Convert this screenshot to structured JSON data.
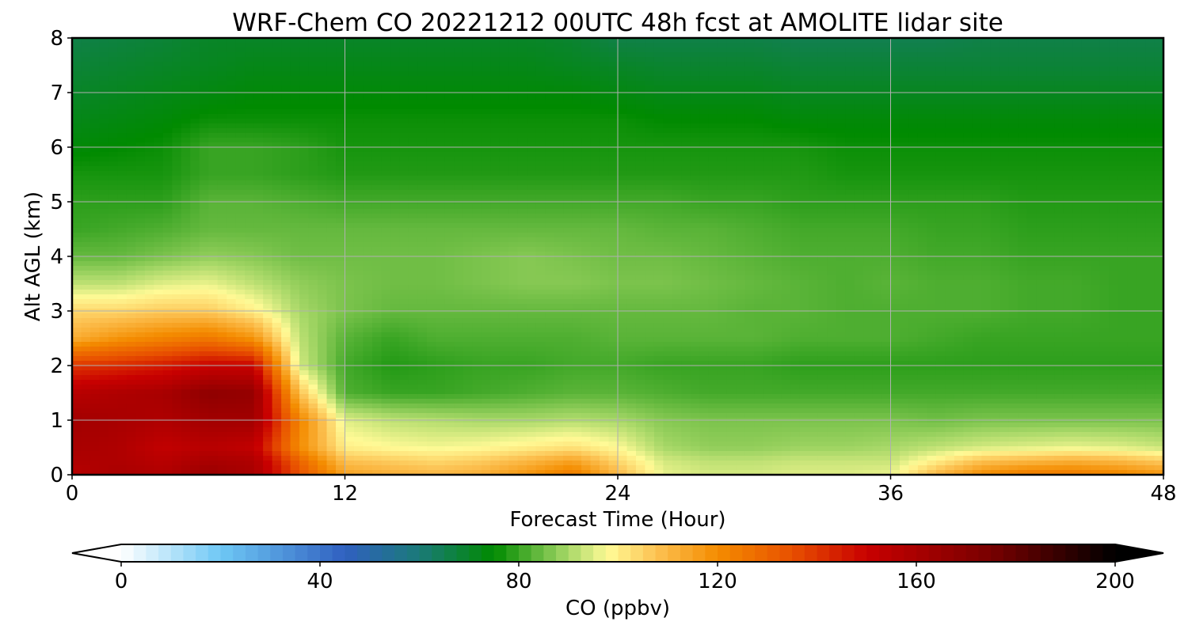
{
  "chart_data": {
    "type": "heatmap",
    "title": "WRF-Chem CO  20221212 00UTC 48h fcst at AMOLITE lidar site",
    "xlabel": "Forecast Time (Hour)",
    "ylabel": "Alt AGL (km)",
    "xlim": [
      0,
      48
    ],
    "ylim": [
      0,
      8
    ],
    "xticks": [
      0,
      12,
      24,
      36,
      48
    ],
    "xtick_labels": [
      "0",
      "12",
      "24",
      "36",
      "48"
    ],
    "yticks": [
      0,
      1,
      2,
      3,
      4,
      5,
      6,
      7,
      8
    ],
    "ytick_labels": [
      "0",
      "1",
      "2",
      "3",
      "4",
      "5",
      "6",
      "7",
      "8"
    ],
    "grid": true,
    "x": [
      0,
      2,
      4,
      6,
      8,
      10,
      12,
      14,
      16,
      18,
      20,
      22,
      24,
      26,
      28,
      30,
      32,
      34,
      36,
      38,
      40,
      42,
      44,
      46,
      48
    ],
    "y": [
      0,
      0.25,
      0.5,
      1,
      1.5,
      2,
      2.5,
      3,
      3.5,
      4,
      4.5,
      5,
      5.5,
      6,
      6.5,
      7,
      7.5,
      8
    ],
    "z_description": "CO mixing ratio in ppbv, rows ordered by altitude (y), columns by forecast hour (x)",
    "z": [
      [
        155,
        160,
        158,
        165,
        160,
        135,
        115,
        112,
        110,
        112,
        118,
        125,
        110,
        96,
        94,
        94,
        95,
        95,
        96,
        110,
        120,
        125,
        125,
        122,
        118
      ],
      [
        158,
        158,
        155,
        160,
        158,
        130,
        108,
        106,
        104,
        106,
        110,
        115,
        104,
        94,
        92,
        92,
        93,
        93,
        93,
        100,
        108,
        110,
        112,
        110,
        106
      ],
      [
        160,
        158,
        152,
        155,
        152,
        120,
        100,
        98,
        97,
        98,
        100,
        102,
        98,
        90,
        88,
        88,
        89,
        89,
        90,
        92,
        94,
        95,
        96,
        95,
        93
      ],
      [
        162,
        160,
        158,
        162,
        162,
        122,
        95,
        92,
        91,
        90,
        90,
        91,
        90,
        87,
        86,
        86,
        86,
        86,
        86,
        85,
        86,
        86,
        86,
        86,
        86
      ],
      [
        155,
        158,
        160,
        168,
        166,
        108,
        82,
        80,
        80,
        81,
        82,
        83,
        83,
        82,
        81,
        81,
        81,
        81,
        81,
        81,
        81,
        81,
        81,
        81,
        81
      ],
      [
        140,
        142,
        145,
        150,
        150,
        94,
        81,
        78,
        79,
        80,
        80,
        81,
        81,
        80,
        80,
        80,
        79,
        79,
        79,
        79,
        79,
        79,
        79,
        79,
        79
      ],
      [
        112,
        118,
        122,
        125,
        118,
        92,
        83,
        80,
        82,
        82,
        82,
        82,
        83,
        83,
        83,
        83,
        82,
        82,
        82,
        81,
        80,
        80,
        80,
        80,
        80
      ],
      [
        104,
        104,
        106,
        106,
        100,
        90,
        86,
        84,
        84,
        84,
        84,
        84,
        84,
        84,
        84,
        83,
        83,
        82,
        82,
        82,
        82,
        81,
        81,
        80,
        80
      ],
      [
        92,
        92,
        95,
        96,
        92,
        88,
        86,
        85,
        85,
        86,
        87,
        87,
        86,
        86,
        85,
        84,
        83,
        82,
        83,
        82,
        82,
        81,
        81,
        80,
        80
      ],
      [
        84,
        84,
        86,
        88,
        87,
        85,
        85,
        85,
        85,
        86,
        87,
        86,
        85,
        85,
        84,
        83,
        82,
        82,
        82,
        81,
        81,
        80,
        80,
        80,
        80
      ],
      [
        80,
        81,
        82,
        84,
        84,
        84,
        84,
        84,
        84,
        84,
        84,
        84,
        84,
        83,
        83,
        82,
        81,
        81,
        81,
        80,
        80,
        79,
        79,
        79,
        79
      ],
      [
        79,
        79,
        79,
        83,
        83,
        82,
        81,
        81,
        81,
        81,
        81,
        81,
        81,
        81,
        80,
        80,
        79,
        79,
        79,
        79,
        79,
        78,
        78,
        78,
        78
      ],
      [
        77,
        77,
        77,
        80,
        80,
        79,
        78,
        78,
        78,
        78,
        78,
        78,
        78,
        78,
        78,
        78,
        78,
        77,
        77,
        77,
        77,
        77,
        77,
        77,
        77
      ],
      [
        74,
        75,
        76,
        80,
        80,
        79,
        77,
        77,
        77,
        77,
        77,
        77,
        77,
        77,
        77,
        77,
        77,
        76,
        76,
        76,
        76,
        76,
        76,
        76,
        76
      ],
      [
        72,
        73,
        74,
        76,
        76,
        76,
        76,
        76,
        76,
        76,
        76,
        76,
        76,
        75,
        75,
        75,
        74,
        74,
        74,
        74,
        74,
        74,
        74,
        74,
        74
      ],
      [
        70,
        71,
        72,
        73,
        74,
        74,
        74,
        74,
        74,
        74,
        74,
        74,
        73,
        72,
        72,
        72,
        71,
        71,
        71,
        71,
        71,
        71,
        71,
        71,
        71
      ],
      [
        68,
        69,
        70,
        71,
        72,
        72,
        72,
        72,
        72,
        72,
        72,
        71,
        70,
        69,
        69,
        69,
        68,
        68,
        68,
        68,
        68,
        68,
        68,
        68,
        68
      ],
      [
        66,
        67,
        68,
        70,
        70,
        70,
        70,
        70,
        70,
        70,
        70,
        69,
        66,
        66,
        66,
        66,
        65,
        65,
        65,
        65,
        66,
        66,
        66,
        66,
        66
      ]
    ],
    "colorbar": {
      "label": "CO  (ppbv)",
      "min": 0,
      "max": 200,
      "ticks": [
        0,
        40,
        80,
        120,
        160,
        200
      ],
      "tick_labels": [
        "0",
        "40",
        "80",
        "120",
        "160",
        "200"
      ],
      "extend": "both",
      "color_stops": [
        {
          "value": 0,
          "color": "#ffffff"
        },
        {
          "value": 20,
          "color": "#6ec8f5"
        },
        {
          "value": 45,
          "color": "#3060c0"
        },
        {
          "value": 60,
          "color": "#1a7a78"
        },
        {
          "value": 75,
          "color": "#008a00"
        },
        {
          "value": 90,
          "color": "#a8d868"
        },
        {
          "value": 98,
          "color": "#fffa96"
        },
        {
          "value": 108,
          "color": "#fcc050"
        },
        {
          "value": 120,
          "color": "#f48c00"
        },
        {
          "value": 135,
          "color": "#e85000"
        },
        {
          "value": 150,
          "color": "#c80000"
        },
        {
          "value": 175,
          "color": "#780000"
        },
        {
          "value": 200,
          "color": "#000000"
        }
      ],
      "under_color": "#ffffff",
      "over_color": "#000000"
    }
  }
}
